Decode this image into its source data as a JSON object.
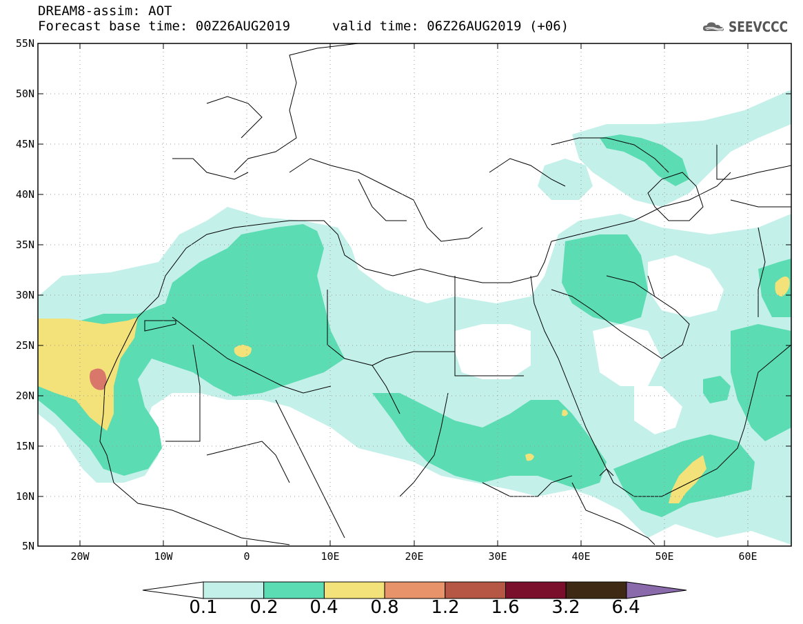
{
  "header": {
    "title_line1": "DREAM8-assim: AOT",
    "title_line2": "Forecast base time: 00Z26AUG2019",
    "valid_time": "valid time: 06Z26AUG2019 (+06)",
    "logo_text": "SEEVCCC"
  },
  "axes": {
    "lat_labels": [
      "55N",
      "50N",
      "45N",
      "40N",
      "35N",
      "30N",
      "25N",
      "20N",
      "15N",
      "10N",
      "5N"
    ],
    "lon_labels": [
      "20W",
      "10W",
      "0",
      "10E",
      "20E",
      "30E",
      "40E",
      "50E",
      "60E"
    ]
  },
  "colorbar": {
    "labels": [
      "0.1",
      "0.2",
      "0.4",
      "0.8",
      "1.2",
      "1.6",
      "3.2",
      "6.4"
    ],
    "colors": [
      "#c4f0ea",
      "#5bdcb2",
      "#f3e27a",
      "#e8936a",
      "#b55744",
      "#7a0f2c",
      "#3d2914",
      "#8a6aaa"
    ]
  },
  "colors": {
    "level1": "#c4f0ea",
    "level2": "#5bdcb2",
    "level3": "#f3e27a",
    "level4": "#d9776a",
    "border": "#000000"
  }
}
